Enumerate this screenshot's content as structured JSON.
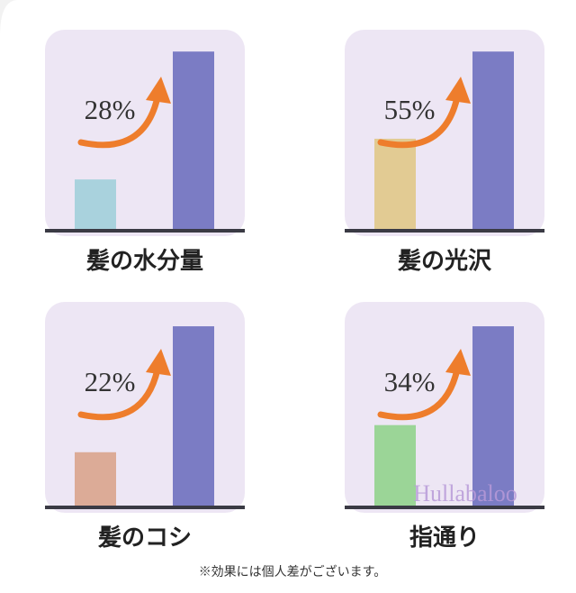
{
  "chart_data": [
    {
      "type": "bar",
      "title": "髪の水分量",
      "annotation": "28%",
      "categories": [
        null,
        null
      ],
      "values": [
        26,
        92
      ],
      "colors": [
        "#a9d2dd",
        "#7b7cc4"
      ],
      "ylim": [
        0,
        100
      ]
    },
    {
      "type": "bar",
      "title": "髪の光沢",
      "annotation": "55%",
      "categories": [
        null,
        null
      ],
      "values": [
        47,
        92
      ],
      "colors": [
        "#e2cb93",
        "#7b7cc4"
      ],
      "ylim": [
        0,
        100
      ]
    },
    {
      "type": "bar",
      "title": "髪のコシ",
      "annotation": "22%",
      "categories": [
        null,
        null
      ],
      "values": [
        28,
        93
      ],
      "colors": [
        "#dcab97",
        "#7b7cc4"
      ],
      "ylim": [
        0,
        100
      ]
    },
    {
      "type": "bar",
      "title": "指通り",
      "annotation": "34%",
      "categories": [
        null,
        null
      ],
      "values": [
        42,
        93
      ],
      "colors": [
        "#9bd597",
        "#7b7cc4"
      ],
      "ylim": [
        0,
        100
      ]
    }
  ],
  "note": "※効果には個人差がございます。",
  "watermark": "Hullabaloo"
}
